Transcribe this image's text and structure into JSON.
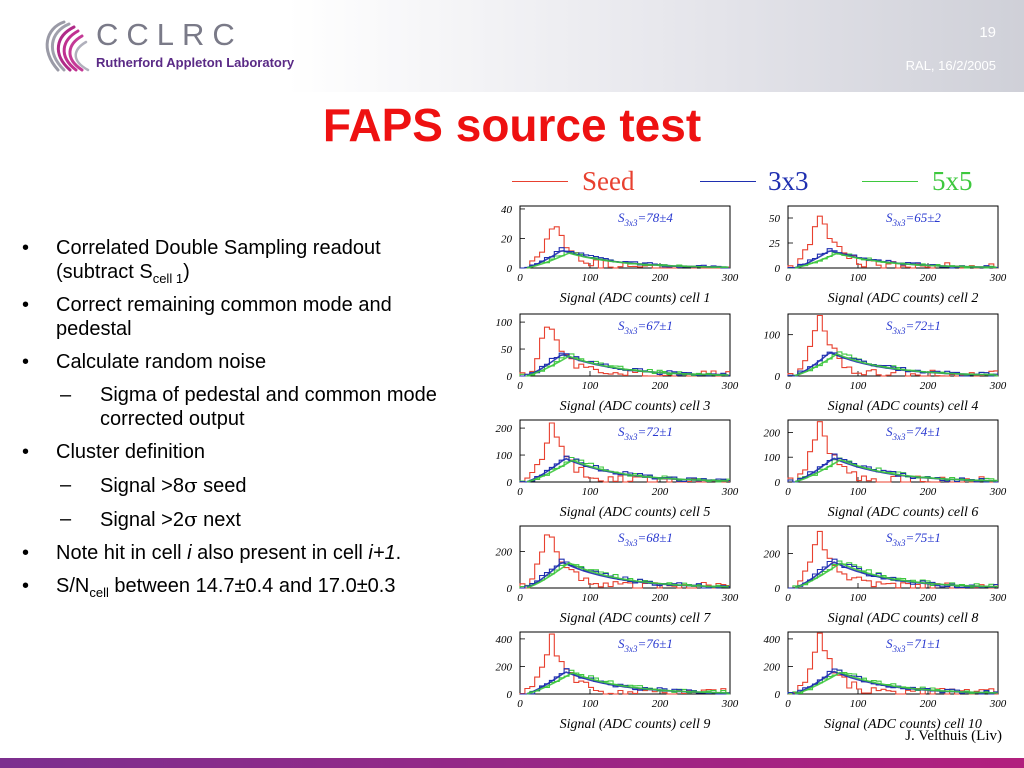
{
  "header": {
    "logo_word": "CCLRC",
    "logo_sub": "Rutherford Appleton Laboratory",
    "slide_number": "19",
    "date": "RAL, 16/2/2005"
  },
  "title": "FAPS source test",
  "legend": [
    {
      "name": "Seed",
      "color": "#e8402f"
    },
    {
      "name": "3x3",
      "color": "#1f2fb0"
    },
    {
      "name": "5x5",
      "color": "#3ec83e"
    }
  ],
  "bullets": {
    "b1_text": "Correlated Double Sampling readout (subtract S",
    "b1_sub": "cell 1",
    "b1_tail": ")",
    "b2": "Correct remaining common mode and pedestal",
    "b3": "Calculate random noise",
    "b3_sub1": "Sigma of pedestal and common mode corrected output",
    "b4": "Cluster definition",
    "b4_sub1_pre": "Signal >8",
    "b4_sub1_sym": "σ",
    "b4_sub1_post": " seed",
    "b4_sub2_pre": "Signal >2",
    "b4_sub2_sym": "σ",
    "b4_sub2_post": " next",
    "b5_pre": "Note hit in cell ",
    "b5_i": "i",
    "b5_mid": " also present in cell ",
    "b5_i1": "i+1",
    "b5_post": ".",
    "b6_pre": "S/N",
    "b6_sub": "cell",
    "b6_post": " between 14.7±0.4 and 17.0±0.3",
    "bullet_char": "•",
    "dash_char": "–"
  },
  "credit": "J. Velthuis (Liv)",
  "chart_data": {
    "type": "line",
    "description_free": true,
    "xlabel_prefix": "Signal (ADC counts) cell ",
    "xticks": [
      0,
      100,
      200,
      300
    ],
    "xlim": [
      0,
      300
    ],
    "series_colors": {
      "seed": "#e8402f",
      "s3x3": "#1f2fb0",
      "s5x5": "#3ec83e"
    },
    "panels": [
      {
        "cell": "1",
        "s3x3_text": "=78±4",
        "yticks": [
          0,
          20,
          40
        ],
        "ymax": 42,
        "peaks": {
          "seed": [
            50,
            32
          ],
          "s3x3": [
            60,
            13
          ],
          "s5x5": [
            70,
            11
          ]
        }
      },
      {
        "cell": "2",
        "s3x3_text": "=65±2",
        "yticks": [
          0,
          25,
          50
        ],
        "ymax": 62,
        "peaks": {
          "seed": [
            45,
            55
          ],
          "s3x3": [
            60,
            19
          ],
          "s5x5": [
            70,
            16
          ]
        }
      },
      {
        "cell": "3",
        "s3x3_text": "=67±1",
        "yticks": [
          0,
          50,
          100
        ],
        "ymax": 115,
        "peaks": {
          "seed": [
            40,
            105
          ],
          "s3x3": [
            60,
            44
          ],
          "s5x5": [
            70,
            40
          ]
        }
      },
      {
        "cell": "4",
        "s3x3_text": "=72±1",
        "yticks": [
          0,
          100
        ],
        "ymax": 150,
        "peaks": {
          "seed": [
            45,
            135
          ],
          "s3x3": [
            60,
            62
          ],
          "s5x5": [
            70,
            58
          ]
        }
      },
      {
        "cell": "5",
        "s3x3_text": "=72±1",
        "yticks": [
          0,
          100,
          200
        ],
        "ymax": 230,
        "peaks": {
          "seed": [
            45,
            205
          ],
          "s3x3": [
            65,
            95
          ],
          "s5x5": [
            75,
            88
          ]
        }
      },
      {
        "cell": "6",
        "s3x3_text": "=74±1",
        "yticks": [
          0,
          100,
          200
        ],
        "ymax": 250,
        "peaks": {
          "seed": [
            45,
            225
          ],
          "s3x3": [
            65,
            105
          ],
          "s5x5": [
            75,
            98
          ]
        }
      },
      {
        "cell": "7",
        "s3x3_text": "=68±1",
        "yticks": [
          0,
          200
        ],
        "ymax": 340,
        "peaks": {
          "seed": [
            40,
            315
          ],
          "s3x3": [
            60,
            155
          ],
          "s5x5": [
            70,
            150
          ]
        }
      },
      {
        "cell": "8",
        "s3x3_text": "=75±1",
        "yticks": [
          0,
          200
        ],
        "ymax": 360,
        "peaks": {
          "seed": [
            45,
            330
          ],
          "s3x3": [
            65,
            165
          ],
          "s5x5": [
            75,
            158
          ]
        }
      },
      {
        "cell": "9",
        "s3x3_text": "=76±1",
        "yticks": [
          0,
          200,
          400
        ],
        "ymax": 450,
        "peaks": {
          "seed": [
            45,
            410
          ],
          "s3x3": [
            65,
            175
          ],
          "s5x5": [
            75,
            168
          ]
        }
      },
      {
        "cell": "10",
        "s3x3_text": "=71±1",
        "yticks": [
          0,
          200,
          400
        ],
        "ymax": 450,
        "peaks": {
          "seed": [
            45,
            400
          ],
          "s3x3": [
            65,
            180
          ],
          "s5x5": [
            75,
            172
          ]
        }
      }
    ]
  }
}
